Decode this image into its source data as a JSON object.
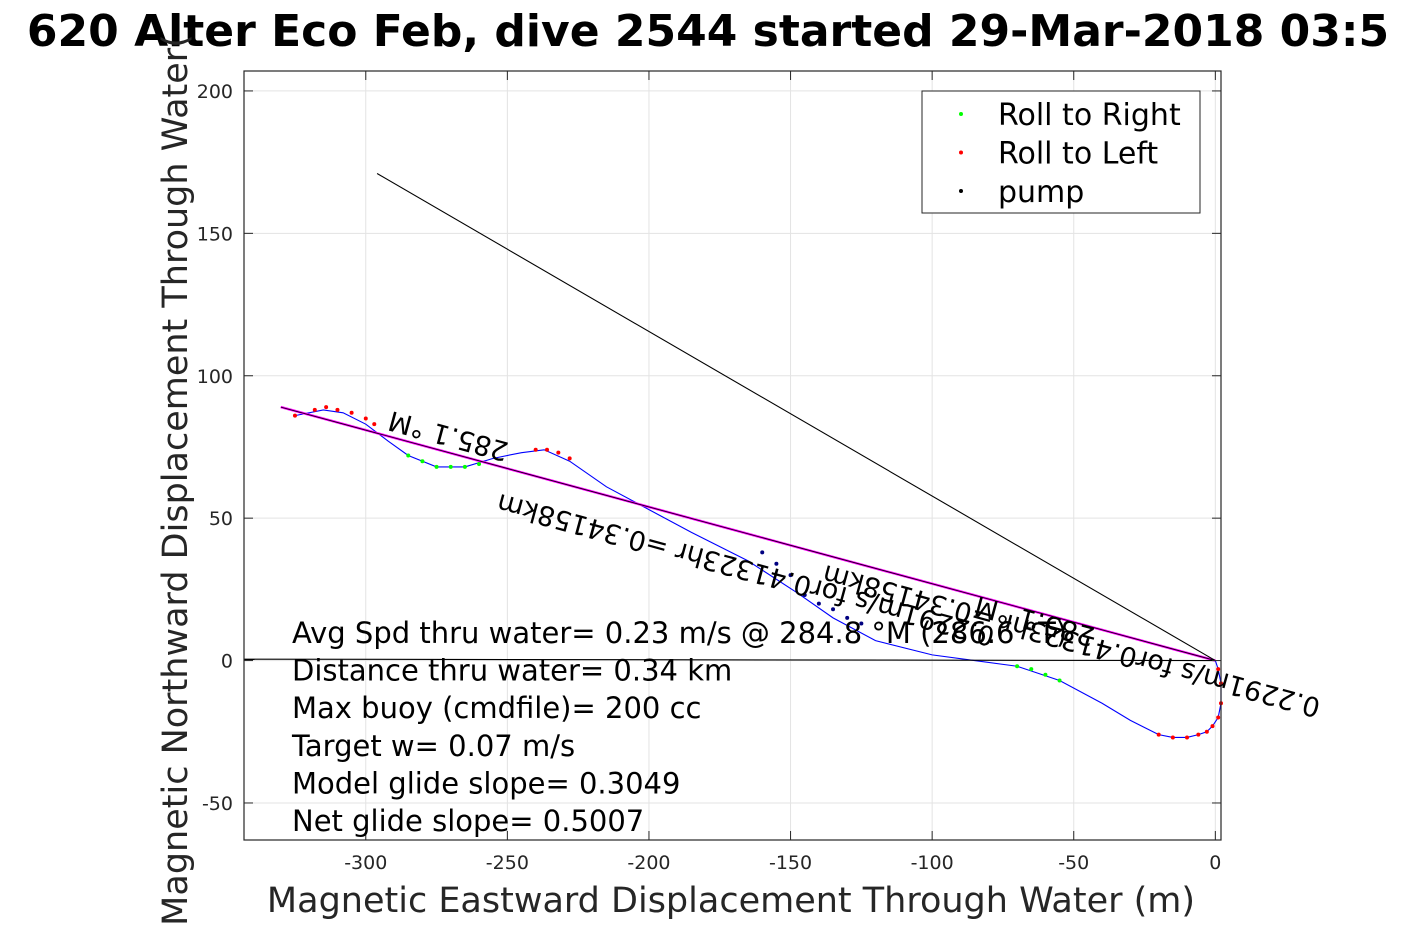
{
  "chart_data": {
    "type": "line",
    "title": "620 Alter Eco Feb, dive 2544 started 29-Mar-2018 03:5",
    "xlabel": "Magnetic Eastward Displacement Through Water (m)",
    "ylabel": "Magnetic Northward Displacement Through Water(",
    "xlim": [
      -343,
      2
    ],
    "ylim": [
      -63,
      207
    ],
    "xticks": [
      -300,
      -250,
      -200,
      -150,
      -100,
      -50,
      0
    ],
    "yticks": [
      -50,
      0,
      50,
      100,
      150,
      200
    ],
    "xtick_labels": [
      "-300",
      "-250",
      "-200",
      "-150",
      "-100",
      "-50",
      "0"
    ],
    "ytick_labels": [
      "-50",
      "0",
      "50",
      "100",
      "150",
      "200"
    ],
    "grid": true,
    "legend_position": "top-right",
    "legend": [
      {
        "label": "Roll to Right",
        "color": "#00ff00"
      },
      {
        "label": "Roll to Left",
        "color": "#ff0000"
      },
      {
        "label": "pump",
        "color": "#000000"
      }
    ],
    "series": [
      {
        "kind": "track",
        "color": "#0000ff",
        "x": [
          0,
          1,
          2,
          2,
          1,
          -1,
          -3,
          -6,
          -10,
          -15,
          -20,
          -30,
          -40,
          -55,
          -70,
          -85,
          -100,
          -120,
          -135,
          -148,
          -165,
          -185,
          -200,
          -215,
          -228,
          -237,
          -245,
          -255,
          -265,
          -275,
          -285,
          -292,
          -300,
          -308,
          -315,
          -325
        ],
        "y": [
          0,
          -3,
          -8,
          -15,
          -20,
          -23,
          -25,
          -26,
          -27,
          -27,
          -26,
          -21,
          -15,
          -7,
          -2,
          0,
          2,
          7,
          15,
          24,
          35,
          45,
          53,
          61,
          70,
          74,
          73,
          71,
          68,
          68,
          72,
          77,
          83,
          87,
          88,
          86
        ]
      },
      {
        "kind": "roll-to-right-points",
        "color": "#00ff00",
        "x": [
          -70,
          -65,
          -60,
          -55,
          -285,
          -280,
          -275,
          -270,
          -265,
          -260
        ],
        "y": [
          -2,
          -3,
          -5,
          -7,
          72,
          70,
          68,
          68,
          68,
          69
        ]
      },
      {
        "kind": "roll-to-left-points",
        "color": "#ff0000",
        "x": [
          1,
          2,
          2,
          1,
          -1,
          -3,
          -6,
          -10,
          -15,
          -20,
          -325,
          -318,
          -314,
          -310,
          -305,
          -300,
          -297,
          -240,
          -236,
          -232,
          -228
        ],
        "y": [
          -3,
          -8,
          -15,
          -20,
          -23,
          -25,
          -26,
          -27,
          -27,
          -26,
          86,
          88,
          89,
          88,
          87,
          85,
          83,
          74,
          74,
          73,
          71
        ]
      },
      {
        "kind": "pump-points",
        "color": "#000080",
        "x": [
          -160,
          -155,
          -150,
          -145,
          -140,
          -135,
          -130,
          -125
        ],
        "y": [
          38,
          34,
          30,
          23,
          20,
          18,
          15,
          13
        ]
      },
      {
        "kind": "glide-line",
        "color": "#ff00ff",
        "x": [
          0,
          -330
        ],
        "y": [
          0,
          89
        ]
      },
      {
        "kind": "glide-line",
        "color": "#000000",
        "x": [
          0,
          -330
        ],
        "y": [
          0,
          89
        ]
      },
      {
        "kind": "line",
        "color": "#000000",
        "x": [
          0,
          -296
        ],
        "y": [
          0,
          171
        ]
      },
      {
        "kind": "line",
        "color": "#000000",
        "x": [
          0,
          -343
        ],
        "y": [
          0,
          0.5
        ]
      }
    ],
    "annotations": [
      "Avg Spd thru water=  0.23 m/s @ 284.8 °M (286.6 °T)",
      "Distance thru water=  0.34 km",
      "Max buoy (cmdfile)= 200 cc",
      "Target w= 0.07 m/s",
      "Model glide slope= 0.3049",
      "Net glide slope= 0.5007"
    ],
    "flipped_labels": [
      {
        "text": "285.1 °M",
        "x": -270,
        "y": 82
      },
      {
        "text": "0.2291m/s for0.41323hr =0.34158km",
        "x": -165,
        "y": 35
      },
      {
        "text": "285.1 °M",
        "x": -63,
        "y": 17
      },
      {
        "text": "0.2291m/s for0.41323hr =0.34158km",
        "x": -50,
        "y": 10
      }
    ]
  }
}
